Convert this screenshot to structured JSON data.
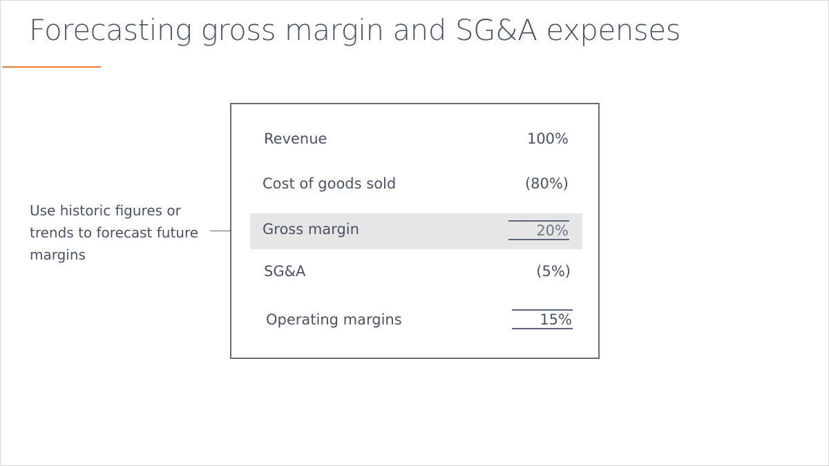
{
  "slide": {
    "title": "Forecasting gross margin and SG&A expenses",
    "accent_color": "#f07a30"
  },
  "callout": {
    "lines": [
      "Use historic figures or",
      "trends to forecast future",
      "margins"
    ]
  },
  "table": {
    "rows": [
      {
        "label": "Revenue",
        "value": "100%"
      },
      {
        "label": "Cost of goods sold",
        "value": "(80%)"
      },
      {
        "label": "Gross margin",
        "value": "20%",
        "highlighted": true
      },
      {
        "label": "SG&A",
        "value": "(5%)"
      },
      {
        "label": "Operating margins",
        "value": "15%"
      }
    ],
    "highlight_color": "#e6e6e6"
  }
}
